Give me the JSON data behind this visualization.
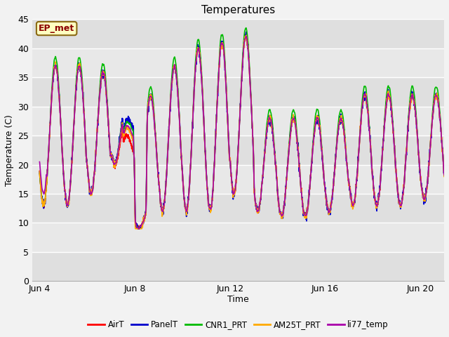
{
  "title": "Temperatures",
  "xlabel": "Time",
  "ylabel": "Temperature (C)",
  "annotation_text": "EP_met",
  "annotation_color": "#8B0000",
  "annotation_bg": "#FFFFC0",
  "annotation_border": "#8B6914",
  "ylim": [
    0,
    45
  ],
  "yticks": [
    0,
    5,
    10,
    15,
    20,
    25,
    30,
    35,
    40,
    45
  ],
  "xtick_positions": [
    0,
    4,
    8,
    12,
    16
  ],
  "xtick_labels": [
    "Jun 4",
    "Jun 8",
    "Jun 12",
    "Jun 16",
    "Jun 20"
  ],
  "xlim": [
    -0.3,
    17.0
  ],
  "series": [
    {
      "name": "AirT",
      "color": "#FF0000",
      "lw": 1.2
    },
    {
      "name": "PanelT",
      "color": "#0000CC",
      "lw": 1.2
    },
    {
      "name": "CNR1_PRT",
      "color": "#00BB00",
      "lw": 1.2
    },
    {
      "name": "AM25T_PRT",
      "color": "#FFAA00",
      "lw": 1.2
    },
    {
      "name": "li77_temp",
      "color": "#AA00AA",
      "lw": 1.2
    }
  ],
  "fig_bg": "#F2F2F2",
  "plot_bg": "#E8E8E8",
  "grid_color": "#FFFFFF",
  "grid_lw": 1.0,
  "band1_ymin": 10,
  "band1_ymax": 30,
  "band2_ymin": 35,
  "band2_ymax": 45
}
